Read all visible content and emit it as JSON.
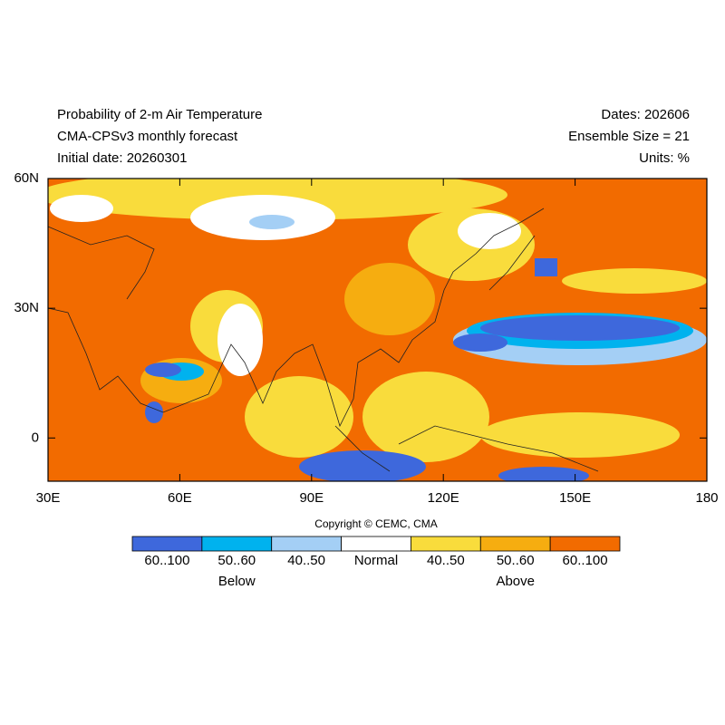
{
  "header": {
    "left": [
      "Probability of 2-m Air Temperature",
      "CMA-CPSv3 monthly forecast",
      "Initial date: 20260301"
    ],
    "right": [
      "Dates: 202606",
      "Ensemble Size = 21",
      "Units: %"
    ]
  },
  "map": {
    "lon_range": [
      30,
      180
    ],
    "lat_range": [
      -10,
      60
    ],
    "lon_ticks": [
      {
        "value": 30,
        "label": "30E"
      },
      {
        "value": 60,
        "label": "60E"
      },
      {
        "value": 90,
        "label": "90E"
      },
      {
        "value": 120,
        "label": "120E"
      },
      {
        "value": 150,
        "label": "150E"
      },
      {
        "value": 180,
        "label": "180"
      }
    ],
    "lat_ticks": [
      {
        "value": 60,
        "label": "60N"
      },
      {
        "value": 30,
        "label": "30N"
      },
      {
        "value": 0,
        "label": "0"
      }
    ]
  },
  "copyright": "Copyright © CEMC, CMA",
  "legend": {
    "items": [
      {
        "label": "60..100",
        "color": "#3e68dc"
      },
      {
        "label": "50..60",
        "color": "#00b2ee"
      },
      {
        "label": "40..50",
        "color": "#a4cff5"
      },
      {
        "label": "Normal",
        "color": "#ffffff"
      },
      {
        "label": "40..50",
        "color": "#f9dc3c"
      },
      {
        "label": "50..60",
        "color": "#f6ad10"
      },
      {
        "label": "60..100",
        "color": "#f26b00"
      }
    ],
    "groups": [
      "Below",
      "Above"
    ]
  }
}
